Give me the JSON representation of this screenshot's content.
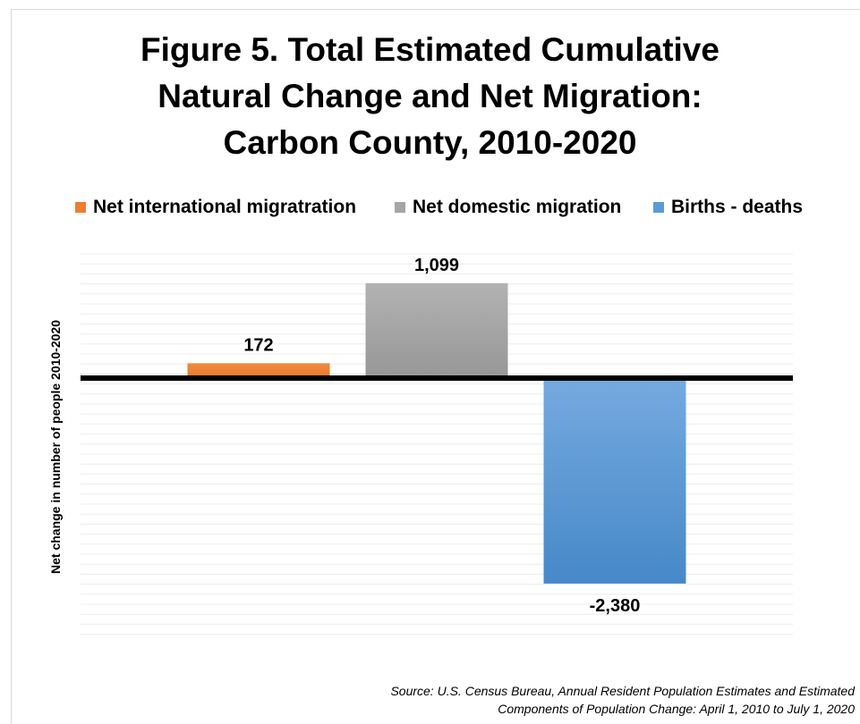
{
  "title": {
    "lines": [
      "Figure 5. Total Estimated Cumulative",
      "Natural Change and Net Migration:",
      "Carbon County, 2010-2020"
    ]
  },
  "legend": {
    "items": [
      {
        "label": "Net international migratration",
        "color": "#ed7d31"
      },
      {
        "label": "Net domestic migration",
        "color": "#a5a5a5"
      },
      {
        "label": "Births  - deaths",
        "color": "#5b9bd5"
      }
    ]
  },
  "ylabel": "Net change in number of people 2010-2020",
  "source": {
    "lines": [
      "Source: U.S. Census Bureau, Annual Resident Population Estimates and Estimated",
      "Components of Population Change: April 1, 2010 to July 1, 2020"
    ]
  },
  "chart_data": {
    "type": "bar",
    "categories": [
      "Net international migratration",
      "Net domestic migration",
      "Births  - deaths"
    ],
    "values": [
      172,
      1099,
      -2380
    ],
    "data_labels": [
      "172",
      "1,099",
      "-2,380"
    ],
    "colors": [
      "#ed7d31",
      "#a5a5a5",
      "#5b9bd5"
    ],
    "ylim": [
      -3000,
      1500
    ],
    "grid": true,
    "legend_position": "top"
  }
}
